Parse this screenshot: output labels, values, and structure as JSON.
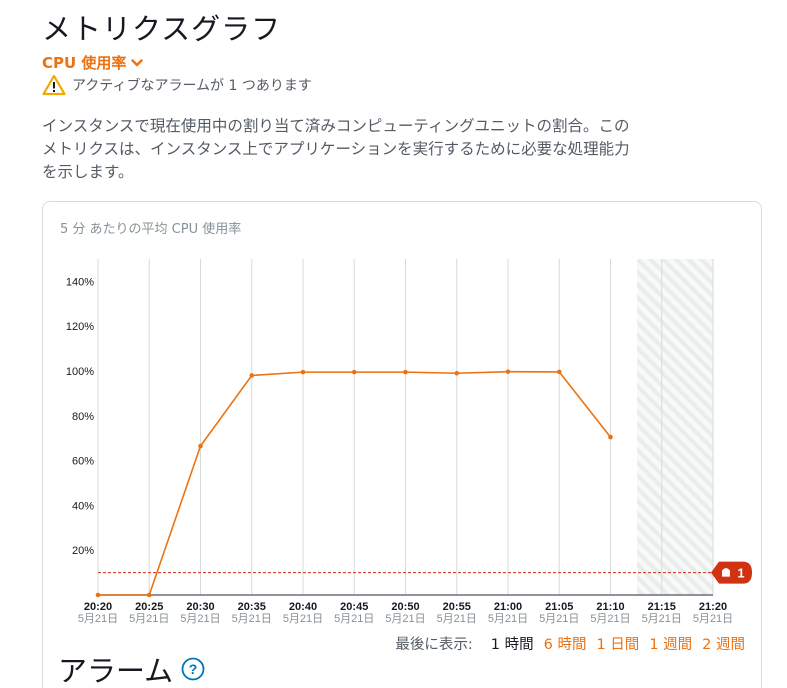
{
  "page": {
    "title": "メトリクスグラフ"
  },
  "metric_selector": {
    "label": "CPU 使用率"
  },
  "alarm_notice": {
    "text": "アクティブなアラームが 1 つあります"
  },
  "description": "インスタンスで現在使用中の割り当て済みコンピューティングユニットの割合。このメトリクスは、インスタンス上でアプリケーションを実行するために必要な処理能力を示します。",
  "chart": {
    "subtitle": "5 分 あたりの平均 CPU 使用率",
    "alarm_badge": "1"
  },
  "chart_data": {
    "type": "line",
    "title": "5 分 あたりの平均 CPU 使用率",
    "x": [
      "20:20",
      "20:25",
      "20:30",
      "20:35",
      "20:40",
      "20:45",
      "20:50",
      "20:55",
      "21:00",
      "21:05",
      "21:10",
      "21:15",
      "21:20"
    ],
    "x_sublabel": "5月21日",
    "series": [
      {
        "name": "",
        "values": [
          0,
          0,
          66.5,
          98,
          99.5,
          99.5,
          99.5,
          99,
          99.7,
          99.6,
          70.5,
          null,
          null
        ]
      }
    ],
    "threshold": 10,
    "ylim": [
      0,
      150
    ],
    "yticks": [
      "20%",
      "40%",
      "60%",
      "80%",
      "100%",
      "120%",
      "140%"
    ],
    "ytick_values": [
      20,
      40,
      60,
      80,
      100,
      120,
      140
    ],
    "grid": true,
    "colors": {
      "line": "#ec7211",
      "threshold": "#d13212",
      "future_hatch": "#e9ebed"
    }
  },
  "time_range": {
    "label": "最後に表示:",
    "options": [
      "1 時間",
      "6 時間",
      "1 日間",
      "1 週間",
      "2 週間"
    ],
    "active_index": 0
  },
  "alarm_section": {
    "title": "アラーム"
  }
}
